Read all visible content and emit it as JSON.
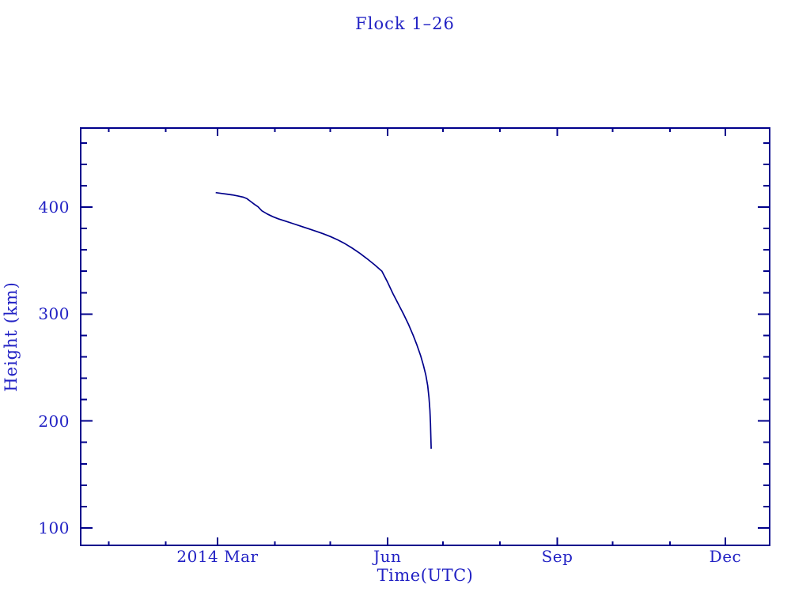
{
  "chart": {
    "title": "Flock 1–26",
    "xlabel": "Time(UTC)",
    "ylabel": "Height (km)"
  },
  "colors": {
    "line": "#00008b",
    "text": "#2222c4",
    "background": "#ffffff"
  },
  "chart_data": {
    "type": "line",
    "title": "Flock 1–26",
    "xlabel": "Time(UTC)",
    "ylabel": "Height (km)",
    "x_encoding": "days since 2014-01-01 (Mar 1 = 59)",
    "xlim": [
      -15.1,
      358.0
    ],
    "ylim": [
      83.7,
      473.9
    ],
    "grid": false,
    "legend": "none",
    "x_ticks_major": [
      {
        "day": 59,
        "label": "2014 Mar"
      },
      {
        "day": 151,
        "label": "Jun"
      },
      {
        "day": 243,
        "label": "Sep"
      },
      {
        "day": 334,
        "label": "Dec"
      }
    ],
    "x_ticks_minor_days": [
      0,
      31,
      90,
      120,
      181,
      212,
      273,
      304
    ],
    "y_ticks_major": [
      {
        "value": 100,
        "label": "100"
      },
      {
        "value": 200,
        "label": "200"
      },
      {
        "value": 300,
        "label": "300"
      },
      {
        "value": 400,
        "label": "400"
      }
    ],
    "y_ticks_minor_values": [
      120,
      140,
      160,
      180,
      220,
      240,
      260,
      280,
      320,
      340,
      360,
      380,
      420,
      440,
      460
    ],
    "series": [
      {
        "name": "orbit-height-km",
        "points": [
          [
            58,
            413.5
          ],
          [
            61,
            412.8
          ],
          [
            64,
            412.1
          ],
          [
            67,
            411.4
          ],
          [
            70,
            410.4
          ],
          [
            73,
            409.2
          ],
          [
            75,
            407.8
          ],
          [
            77,
            405.2
          ],
          [
            79,
            402.5
          ],
          [
            81,
            400.2
          ],
          [
            83,
            396.5
          ],
          [
            86,
            393.5
          ],
          [
            89,
            391.0
          ],
          [
            92,
            389.0
          ],
          [
            96,
            386.8
          ],
          [
            100,
            384.5
          ],
          [
            104,
            382.2
          ],
          [
            108,
            379.9
          ],
          [
            112,
            377.6
          ],
          [
            116,
            375.2
          ],
          [
            120,
            372.5
          ],
          [
            124,
            369.4
          ],
          [
            128,
            365.8
          ],
          [
            132,
            361.6
          ],
          [
            136,
            356.9
          ],
          [
            140,
            351.7
          ],
          [
            144,
            346.1
          ],
          [
            148,
            340.1
          ],
          [
            151,
            330.0
          ],
          [
            154,
            319.0
          ],
          [
            157,
            309.0
          ],
          [
            160,
            299.0
          ],
          [
            162.5,
            290.0
          ],
          [
            165,
            280.0
          ],
          [
            167,
            271.0
          ],
          [
            169,
            261.0
          ],
          [
            170.5,
            252.0
          ],
          [
            171.8,
            243.0
          ],
          [
            172.8,
            233.0
          ],
          [
            173.5,
            222.0
          ],
          [
            174.0,
            210.0
          ],
          [
            174.3,
            198.0
          ],
          [
            174.5,
            187.0
          ],
          [
            174.7,
            174.0
          ]
        ]
      }
    ]
  }
}
